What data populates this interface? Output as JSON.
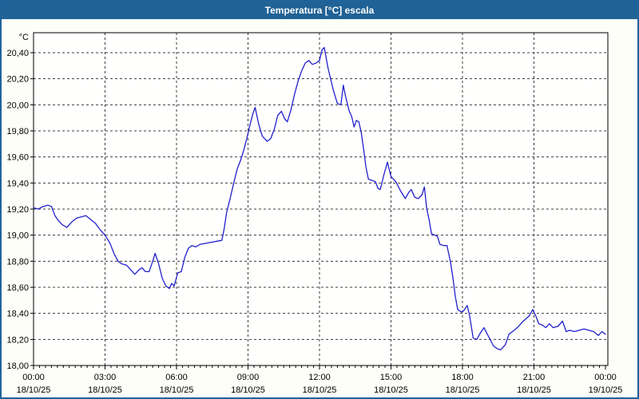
{
  "title_bar": {
    "title": "Temperatura [°C] escala"
  },
  "colors": {
    "titlebar_bg": "#206295",
    "window_border": "#1e639b",
    "body_bg": "#fdfef8",
    "plot_bg": "#fffffe",
    "plot_border": "#000000",
    "grid": "#3c3c3c",
    "line": "#2121cc",
    "label_text": "#000000",
    "title_text": "#ffffff"
  },
  "chart_data": {
    "type": "line",
    "title": "Temperatura [°C] escala",
    "ylabel": "°C",
    "xlabel": "",
    "ylim": [
      18.0,
      20.4
    ],
    "y_tick_step": 0.2,
    "y_tick_labels": [
      "18,00",
      "18,20",
      "18,40",
      "18,60",
      "18,80",
      "19,00",
      "19,20",
      "19,40",
      "19,60",
      "19,80",
      "20,00",
      "20,20",
      "20,40"
    ],
    "xlim_hours": [
      0,
      24
    ],
    "x_ticks": [
      {
        "hour": 0,
        "time": "00:00",
        "date": "18/10/25"
      },
      {
        "hour": 3,
        "time": "03:00",
        "date": "18/10/25"
      },
      {
        "hour": 6,
        "time": "06:00",
        "date": "18/10/25"
      },
      {
        "hour": 9,
        "time": "09:00",
        "date": "18/10/25"
      },
      {
        "hour": 12,
        "time": "12:00",
        "date": "18/10/25"
      },
      {
        "hour": 15,
        "time": "15:00",
        "date": "18/10/25"
      },
      {
        "hour": 18,
        "time": "18:00",
        "date": "18/10/25"
      },
      {
        "hour": 21,
        "time": "21:00",
        "date": "18/10/25"
      },
      {
        "hour": 24,
        "time": "00:00",
        "date": "19/10/25"
      }
    ],
    "grid": "dashed",
    "legend": null,
    "series": [
      {
        "name": "Temperatura [°C]",
        "color": "#2121cc",
        "points": [
          [
            0.0,
            19.21
          ],
          [
            0.2,
            19.2
          ],
          [
            0.4,
            19.22
          ],
          [
            0.6,
            19.23
          ],
          [
            0.75,
            19.22
          ],
          [
            0.9,
            19.15
          ],
          [
            1.05,
            19.11
          ],
          [
            1.2,
            19.08
          ],
          [
            1.4,
            19.06
          ],
          [
            1.6,
            19.1
          ],
          [
            1.8,
            19.13
          ],
          [
            2.0,
            19.14
          ],
          [
            2.2,
            19.15
          ],
          [
            2.4,
            19.12
          ],
          [
            2.6,
            19.09
          ],
          [
            2.8,
            19.04
          ],
          [
            3.0,
            19.0
          ],
          [
            3.2,
            18.94
          ],
          [
            3.4,
            18.85
          ],
          [
            3.55,
            18.8
          ],
          [
            3.7,
            18.78
          ],
          [
            3.9,
            18.77
          ],
          [
            4.1,
            18.73
          ],
          [
            4.25,
            18.7
          ],
          [
            4.4,
            18.73
          ],
          [
            4.55,
            18.75
          ],
          [
            4.7,
            18.72
          ],
          [
            4.85,
            18.72
          ],
          [
            5.0,
            18.8
          ],
          [
            5.1,
            18.86
          ],
          [
            5.25,
            18.78
          ],
          [
            5.4,
            18.67
          ],
          [
            5.55,
            18.61
          ],
          [
            5.7,
            18.59
          ],
          [
            5.8,
            18.63
          ],
          [
            5.9,
            18.61
          ],
          [
            6.05,
            18.71
          ],
          [
            6.2,
            18.72
          ],
          [
            6.35,
            18.83
          ],
          [
            6.5,
            18.9
          ],
          [
            6.65,
            18.92
          ],
          [
            6.8,
            18.91
          ],
          [
            7.0,
            18.93
          ],
          [
            7.3,
            18.94
          ],
          [
            7.6,
            18.95
          ],
          [
            7.9,
            18.96
          ],
          [
            8.0,
            19.05
          ],
          [
            8.1,
            19.17
          ],
          [
            8.25,
            19.28
          ],
          [
            8.4,
            19.4
          ],
          [
            8.55,
            19.51
          ],
          [
            8.7,
            19.58
          ],
          [
            8.85,
            19.67
          ],
          [
            9.0,
            19.78
          ],
          [
            9.1,
            19.86
          ],
          [
            9.2,
            19.93
          ],
          [
            9.3,
            19.98
          ],
          [
            9.45,
            19.85
          ],
          [
            9.6,
            19.76
          ],
          [
            9.8,
            19.72
          ],
          [
            9.95,
            19.74
          ],
          [
            10.1,
            19.81
          ],
          [
            10.25,
            19.92
          ],
          [
            10.4,
            19.95
          ],
          [
            10.55,
            19.89
          ],
          [
            10.65,
            19.87
          ],
          [
            10.8,
            19.96
          ],
          [
            10.95,
            20.08
          ],
          [
            11.1,
            20.18
          ],
          [
            11.25,
            20.26
          ],
          [
            11.4,
            20.32
          ],
          [
            11.55,
            20.34
          ],
          [
            11.7,
            20.31
          ],
          [
            11.85,
            20.32
          ],
          [
            12.0,
            20.34
          ],
          [
            12.1,
            20.42
          ],
          [
            12.2,
            20.44
          ],
          [
            12.35,
            20.29
          ],
          [
            12.45,
            20.21
          ],
          [
            12.6,
            20.1
          ],
          [
            12.75,
            20.01
          ],
          [
            12.9,
            20.0
          ],
          [
            13.0,
            20.15
          ],
          [
            13.1,
            20.06
          ],
          [
            13.25,
            19.95
          ],
          [
            13.35,
            19.91
          ],
          [
            13.45,
            19.83
          ],
          [
            13.55,
            19.88
          ],
          [
            13.65,
            19.87
          ],
          [
            13.75,
            19.79
          ],
          [
            13.85,
            19.66
          ],
          [
            13.95,
            19.52
          ],
          [
            14.05,
            19.43
          ],
          [
            14.2,
            19.42
          ],
          [
            14.35,
            19.41
          ],
          [
            14.45,
            19.36
          ],
          [
            14.55,
            19.35
          ],
          [
            14.7,
            19.46
          ],
          [
            14.85,
            19.56
          ],
          [
            15.0,
            19.45
          ],
          [
            15.2,
            19.41
          ],
          [
            15.4,
            19.34
          ],
          [
            15.6,
            19.28
          ],
          [
            15.75,
            19.33
          ],
          [
            15.85,
            19.35
          ],
          [
            16.0,
            19.29
          ],
          [
            16.15,
            19.28
          ],
          [
            16.3,
            19.31
          ],
          [
            16.4,
            19.37
          ],
          [
            16.5,
            19.2
          ],
          [
            16.6,
            19.12
          ],
          [
            16.7,
            19.01
          ],
          [
            16.85,
            19.0
          ],
          [
            16.95,
            18.99
          ],
          [
            17.05,
            18.93
          ],
          [
            17.2,
            18.92
          ],
          [
            17.35,
            18.92
          ],
          [
            17.5,
            18.79
          ],
          [
            17.6,
            18.67
          ],
          [
            17.7,
            18.53
          ],
          [
            17.8,
            18.43
          ],
          [
            17.95,
            18.41
          ],
          [
            18.05,
            18.42
          ],
          [
            18.2,
            18.46
          ],
          [
            18.3,
            18.38
          ],
          [
            18.45,
            18.21
          ],
          [
            18.6,
            18.2
          ],
          [
            18.75,
            18.25
          ],
          [
            18.9,
            18.29
          ],
          [
            19.1,
            18.22
          ],
          [
            19.3,
            18.15
          ],
          [
            19.45,
            18.13
          ],
          [
            19.6,
            18.12
          ],
          [
            19.8,
            18.16
          ],
          [
            19.95,
            18.24
          ],
          [
            20.1,
            18.26
          ],
          [
            20.3,
            18.29
          ],
          [
            20.55,
            18.34
          ],
          [
            20.8,
            18.38
          ],
          [
            20.95,
            18.43
          ],
          [
            21.1,
            18.37
          ],
          [
            21.2,
            18.32
          ],
          [
            21.35,
            18.31
          ],
          [
            21.5,
            18.29
          ],
          [
            21.65,
            18.32
          ],
          [
            21.8,
            18.29
          ],
          [
            22.0,
            18.3
          ],
          [
            22.2,
            18.34
          ],
          [
            22.35,
            18.26
          ],
          [
            22.5,
            18.27
          ],
          [
            22.7,
            18.26
          ],
          [
            22.9,
            18.27
          ],
          [
            23.1,
            18.28
          ],
          [
            23.3,
            18.27
          ],
          [
            23.5,
            18.26
          ],
          [
            23.7,
            18.23
          ],
          [
            23.85,
            18.26
          ],
          [
            24.0,
            18.24
          ]
        ]
      }
    ]
  }
}
